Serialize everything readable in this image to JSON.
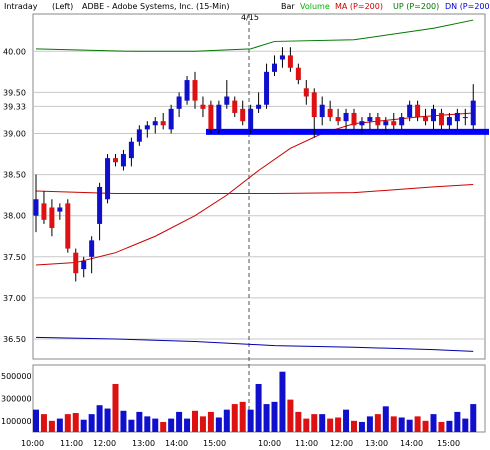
{
  "header": {
    "timeframe": "Intraday",
    "axis_side": "(Left)",
    "symbol_desc": "ADBE - Adobe Systems, Inc. (15-Min)",
    "date_marker": "4/15",
    "legend": [
      {
        "label": "Bar",
        "color": "#000000"
      },
      {
        "label": "Volume",
        "color": "#00b000"
      },
      {
        "label": "MA (P=200)",
        "color": "#cc0000"
      },
      {
        "label": "UP (P=200)",
        "color": "#007700"
      },
      {
        "label": "DN (P=200)",
        "color": "#0000cc"
      }
    ]
  },
  "colors": {
    "up_bar": "#1010cc",
    "down_bar": "#dd1111",
    "ma": "#cc0000",
    "up_band": "#007700",
    "dn_band": "#0000aa",
    "support": "#0000ff",
    "grid": "#c8c8c8",
    "divider": "#555555"
  },
  "chart_data": {
    "type": "candlestick",
    "price_ticks": [
      "40.00",
      "39.50",
      "39.33",
      "39.00",
      "38.50",
      "38.00",
      "37.50",
      "37.00",
      "36.50"
    ],
    "volume_ticks": [
      "500000",
      "300000",
      "100000"
    ],
    "x_ticks": [
      "10:00",
      "11:00",
      "12:00",
      "13:00",
      "14:00",
      "15:00",
      "10:00",
      "11:00",
      "12:00",
      "13:00",
      "14:00",
      "15:00"
    ],
    "ylim": [
      36.25,
      40.45
    ],
    "volume_ylim": [
      0,
      600000
    ],
    "support_level": 39.02,
    "bars": [
      {
        "o": 38.0,
        "h": 38.5,
        "l": 37.8,
        "c": 38.2
      },
      {
        "o": 38.15,
        "h": 38.3,
        "l": 37.9,
        "c": 37.95
      },
      {
        "o": 38.1,
        "h": 38.2,
        "l": 37.75,
        "c": 37.85
      },
      {
        "o": 38.05,
        "h": 38.15,
        "l": 37.95,
        "c": 38.1
      },
      {
        "o": 38.15,
        "h": 38.2,
        "l": 37.55,
        "c": 37.6
      },
      {
        "o": 37.55,
        "h": 37.6,
        "l": 37.2,
        "c": 37.3
      },
      {
        "o": 37.35,
        "h": 37.5,
        "l": 37.25,
        "c": 37.45
      },
      {
        "o": 37.5,
        "h": 37.75,
        "l": 37.3,
        "c": 37.7
      },
      {
        "o": 37.9,
        "h": 38.4,
        "l": 37.7,
        "c": 38.35
      },
      {
        "o": 38.2,
        "h": 38.75,
        "l": 38.15,
        "c": 38.7
      },
      {
        "o": 38.7,
        "h": 38.75,
        "l": 38.6,
        "c": 38.65
      },
      {
        "o": 38.6,
        "h": 38.8,
        "l": 38.55,
        "c": 38.75
      },
      {
        "o": 38.7,
        "h": 38.95,
        "l": 38.6,
        "c": 38.9
      },
      {
        "o": 38.9,
        "h": 39.1,
        "l": 38.85,
        "c": 39.05
      },
      {
        "o": 39.05,
        "h": 39.15,
        "l": 38.95,
        "c": 39.1
      },
      {
        "o": 39.1,
        "h": 39.2,
        "l": 39.0,
        "c": 39.15
      },
      {
        "o": 39.15,
        "h": 39.25,
        "l": 39.05,
        "c": 39.1
      },
      {
        "o": 39.05,
        "h": 39.35,
        "l": 39.0,
        "c": 39.3
      },
      {
        "o": 39.3,
        "h": 39.5,
        "l": 39.2,
        "c": 39.45
      },
      {
        "o": 39.4,
        "h": 39.7,
        "l": 39.35,
        "c": 39.65
      },
      {
        "o": 39.65,
        "h": 39.75,
        "l": 39.3,
        "c": 39.4
      },
      {
        "o": 39.35,
        "h": 39.45,
        "l": 39.2,
        "c": 39.3
      },
      {
        "o": 39.35,
        "h": 39.4,
        "l": 39.0,
        "c": 39.05
      },
      {
        "o": 39.05,
        "h": 39.4,
        "l": 39.0,
        "c": 39.35
      },
      {
        "o": 39.35,
        "h": 39.65,
        "l": 39.3,
        "c": 39.45
      },
      {
        "o": 39.4,
        "h": 39.45,
        "l": 39.2,
        "c": 39.25
      },
      {
        "o": 39.3,
        "h": 39.4,
        "l": 39.1,
        "c": 39.15
      },
      {
        "o": 39.05,
        "h": 39.35,
        "l": 39.0,
        "c": 39.3
      },
      {
        "o": 39.3,
        "h": 39.5,
        "l": 39.25,
        "c": 39.35
      },
      {
        "o": 39.35,
        "h": 39.85,
        "l": 39.3,
        "c": 39.75
      },
      {
        "o": 39.75,
        "h": 39.95,
        "l": 39.7,
        "c": 39.85
      },
      {
        "o": 39.9,
        "h": 40.05,
        "l": 39.8,
        "c": 39.95
      },
      {
        "o": 39.95,
        "h": 40.05,
        "l": 39.75,
        "c": 39.8
      },
      {
        "o": 39.8,
        "h": 39.85,
        "l": 39.6,
        "c": 39.65
      },
      {
        "o": 39.55,
        "h": 39.65,
        "l": 39.35,
        "c": 39.45
      },
      {
        "o": 39.5,
        "h": 39.55,
        "l": 38.95,
        "c": 39.2
      },
      {
        "o": 39.2,
        "h": 39.45,
        "l": 39.1,
        "c": 39.35
      },
      {
        "o": 39.3,
        "h": 39.4,
        "l": 39.15,
        "c": 39.2
      },
      {
        "o": 39.2,
        "h": 39.3,
        "l": 39.1,
        "c": 39.15
      },
      {
        "o": 39.15,
        "h": 39.3,
        "l": 39.05,
        "c": 39.25
      },
      {
        "o": 39.25,
        "h": 39.3,
        "l": 39.05,
        "c": 39.1
      },
      {
        "o": 39.1,
        "h": 39.2,
        "l": 39.0,
        "c": 39.15
      },
      {
        "o": 39.15,
        "h": 39.25,
        "l": 39.05,
        "c": 39.2
      },
      {
        "o": 39.2,
        "h": 39.25,
        "l": 39.05,
        "c": 39.1
      },
      {
        "o": 39.1,
        "h": 39.2,
        "l": 39.0,
        "c": 39.15
      },
      {
        "o": 39.15,
        "h": 39.25,
        "l": 39.05,
        "c": 39.1
      },
      {
        "o": 39.1,
        "h": 39.25,
        "l": 39.05,
        "c": 39.2
      },
      {
        "o": 39.2,
        "h": 39.4,
        "l": 39.15,
        "c": 39.35
      },
      {
        "o": 39.35,
        "h": 39.4,
        "l": 39.15,
        "c": 39.2
      },
      {
        "o": 39.2,
        "h": 39.3,
        "l": 39.1,
        "c": 39.15
      },
      {
        "o": 39.15,
        "h": 39.35,
        "l": 39.05,
        "c": 39.3
      },
      {
        "o": 39.25,
        "h": 39.3,
        "l": 39.05,
        "c": 39.1
      },
      {
        "o": 39.1,
        "h": 39.25,
        "l": 39.05,
        "c": 39.2
      },
      {
        "o": 39.15,
        "h": 39.3,
        "l": 39.05,
        "c": 39.25
      },
      {
        "o": 39.2,
        "h": 39.3,
        "l": 39.1,
        "c": 39.2
      },
      {
        "o": 39.1,
        "h": 39.6,
        "l": 39.05,
        "c": 39.4
      }
    ],
    "volume": [
      200000,
      160000,
      100000,
      120000,
      160000,
      170000,
      110000,
      160000,
      240000,
      210000,
      430000,
      190000,
      110000,
      180000,
      140000,
      120000,
      90000,
      120000,
      180000,
      120000,
      190000,
      140000,
      180000,
      130000,
      200000,
      250000,
      270000,
      200000,
      430000,
      250000,
      270000,
      540000,
      290000,
      180000,
      120000,
      160000,
      160000,
      120000,
      130000,
      200000,
      100000,
      90000,
      140000,
      160000,
      230000,
      140000,
      130000,
      110000,
      140000,
      100000,
      160000,
      90000,
      100000,
      180000,
      120000,
      250000
    ],
    "ma": [
      [
        0,
        37.4
      ],
      [
        5,
        37.43
      ],
      [
        10,
        37.55
      ],
      [
        15,
        37.75
      ],
      [
        20,
        38.0
      ],
      [
        24,
        38.25
      ],
      [
        28,
        38.55
      ],
      [
        32,
        38.82
      ],
      [
        36,
        39.0
      ],
      [
        40,
        39.12
      ],
      [
        44,
        39.16
      ],
      [
        48,
        39.2
      ],
      [
        52,
        39.23
      ],
      [
        55,
        39.25
      ]
    ],
    "up_band": [
      [
        0,
        40.03
      ],
      [
        12,
        40.0
      ],
      [
        20,
        40.0
      ],
      [
        27,
        40.03
      ],
      [
        30,
        40.12
      ],
      [
        40,
        40.14
      ],
      [
        50,
        40.28
      ],
      [
        55,
        40.38
      ]
    ],
    "dn_band": [
      [
        0,
        36.52
      ],
      [
        10,
        36.5
      ],
      [
        20,
        36.47
      ],
      [
        30,
        36.42
      ],
      [
        40,
        36.4
      ],
      [
        50,
        36.37
      ],
      [
        55,
        36.35
      ]
    ],
    "upper_ma": [
      [
        0,
        38.3
      ],
      [
        10,
        38.27
      ],
      [
        20,
        38.27
      ],
      [
        30,
        38.27
      ],
      [
        40,
        38.28
      ],
      [
        50,
        38.35
      ],
      [
        55,
        38.38
      ]
    ]
  }
}
